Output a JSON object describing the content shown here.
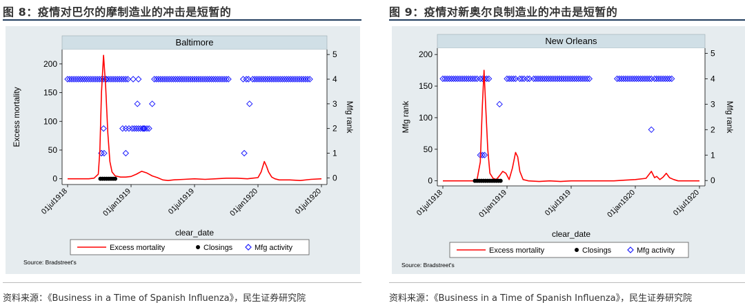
{
  "colors": {
    "excess_mortality": "#ff0000",
    "closings": "#000000",
    "mfg_activity": "#1a1aff",
    "panel_bg": "#e6ecef",
    "plot_bg": "#ffffff",
    "title_strip_bg": "#d0dfe6"
  },
  "figures": [
    {
      "fig_title": "图 8：疫情对巴尔的摩制造业的冲击是短暂的",
      "source_text": "资料来源：《Business in a Time of Spanish Influenza》，民生证券研究院",
      "chart_data": {
        "type": "line",
        "title": "Baltimore",
        "xlabel": "clear_date",
        "ylabel": "Excess mortality",
        "y2label": "Mfg rank",
        "x_tick_labels": [
          "01jul1918",
          "01jan1919",
          "01jul1919",
          "01jan1920",
          "01jul1920"
        ],
        "x_ticks_month": [
          0,
          6,
          12,
          18,
          24
        ],
        "x_range_month": [
          0,
          24
        ],
        "y_ticks": [
          "0",
          "50",
          "100",
          "150",
          "200"
        ],
        "y_range": [
          -10,
          225
        ],
        "y2_ticks": [
          "0",
          "1",
          "2",
          "3",
          "4",
          "5"
        ],
        "y2_range": [
          -0.27,
          5.2
        ],
        "legend": [
          "Excess mortality",
          "Closings",
          "Mfg activity"
        ],
        "legend_position": "bottom",
        "note": "Source: Bradstreet's",
        "excess_mortality": {
          "x": [
            0,
            1,
            2,
            2.5,
            2.9,
            3.05,
            3.2,
            3.4,
            3.6,
            3.8,
            4.0,
            4.2,
            4.5,
            5.0,
            5.5,
            6.0,
            6.5,
            7.0,
            7.5,
            8.0,
            8.5,
            9.0,
            9.5,
            10,
            11,
            12,
            13,
            14,
            15,
            16,
            17,
            17.5,
            18.0,
            18.3,
            18.6,
            18.8,
            19.0,
            19.3,
            19.6,
            20,
            21,
            22,
            23,
            24
          ],
          "y": [
            0,
            0,
            0,
            1,
            8,
            50,
            150,
            215,
            160,
            80,
            30,
            12,
            5,
            3,
            3,
            4,
            8,
            13,
            10,
            5,
            2,
            -2,
            -3,
            -2,
            -1,
            0,
            -1,
            0,
            1,
            1,
            0,
            1,
            2,
            12,
            30,
            22,
            12,
            3,
            0,
            -2,
            -2,
            -3,
            -1,
            0
          ]
        },
        "closings": {
          "x": [
            3.1,
            3.3,
            3.5,
            3.7,
            3.9,
            4.1,
            4.3,
            4.5
          ],
          "y": [
            0,
            0,
            0,
            0,
            0,
            0,
            0,
            0
          ]
        },
        "mfg_activity": {
          "x": [
            0.0,
            0.2,
            0.4,
            0.6,
            0.8,
            1.0,
            1.2,
            1.4,
            1.6,
            1.8,
            2.0,
            2.2,
            2.4,
            2.6,
            2.8,
            3.0,
            3.2,
            3.4,
            3.6,
            3.7,
            3.9,
            4.1,
            4.3,
            4.5,
            4.7,
            4.9,
            5.1,
            5.3,
            5.5,
            5.7,
            6.2,
            6.7,
            3.2,
            3.45,
            3.2,
            3.4,
            5.2,
            5.5,
            5.8,
            6.1,
            6.3,
            6.5,
            6.7,
            6.9,
            7.1,
            7.3,
            7.5,
            7.7,
            5.5,
            6.6,
            7.2,
            8.2,
            8.4,
            8.6,
            8.8,
            9.0,
            9.2,
            9.4,
            9.6,
            9.8,
            10.0,
            10.2,
            10.4,
            10.6,
            10.8,
            11.0,
            11.2,
            11.4,
            11.6,
            11.8,
            12.0,
            12.2,
            12.4,
            12.6,
            12.8,
            13.0,
            13.2,
            13.4,
            13.6,
            13.8,
            14.0,
            14.2,
            14.4,
            14.6,
            14.8,
            15.0,
            15.2,
            8.0,
            16.6,
            16.9,
            17.1,
            17.5,
            17.7,
            17.9,
            18.1,
            18.3,
            18.5,
            18.7,
            18.9,
            19.1,
            19.3,
            19.5,
            19.7,
            19.9,
            20.1,
            20.3,
            20.5,
            20.7,
            20.9,
            21.1,
            21.3,
            21.5,
            21.7,
            21.9,
            22.1,
            22.3,
            22.5,
            22.7,
            22.9,
            17.2,
            16.7
          ],
          "y": [
            4,
            4,
            4,
            4,
            4,
            4,
            4,
            4,
            4,
            4,
            4,
            4,
            4,
            4,
            4,
            4,
            4,
            4,
            4,
            4,
            4,
            4,
            4,
            4,
            4,
            4,
            4,
            4,
            4,
            4,
            4,
            4,
            1,
            1,
            1,
            2,
            2,
            2,
            2,
            2,
            2,
            2,
            2,
            2,
            2,
            2,
            2,
            2,
            1,
            3,
            2,
            4,
            4,
            4,
            4,
            4,
            4,
            4,
            4,
            4,
            4,
            4,
            4,
            4,
            4,
            4,
            4,
            4,
            4,
            4,
            4,
            4,
            4,
            4,
            4,
            4,
            4,
            4,
            4,
            4,
            4,
            4,
            4,
            4,
            4,
            4,
            4,
            3,
            4,
            4,
            4,
            4,
            4,
            4,
            4,
            4,
            4,
            4,
            4,
            4,
            4,
            4,
            4,
            4,
            4,
            4,
            4,
            4,
            4,
            4,
            4,
            4,
            4,
            4,
            4,
            4,
            4,
            4,
            4,
            3,
            1
          ]
        }
      }
    },
    {
      "fig_title": "图 9：疫情对新奥尔良制造业的冲击是短暂的",
      "source_text": "资料来源：《Business in a Time of Spanish Influenza》，民生证券研究院",
      "chart_data": {
        "type": "line",
        "title": "New Orleans",
        "xlabel": "clear_date",
        "ylabel": "Mfg rank",
        "y2label": "Mfg rank",
        "x_tick_labels": [
          "01jul1918",
          "01jan1919",
          "01jul1919",
          "01jan1920",
          "01jul1920"
        ],
        "x_ticks_month": [
          0,
          6,
          12,
          18,
          24
        ],
        "x_range_month": [
          0,
          24
        ],
        "y_ticks": [
          "0",
          "50",
          "100",
          "150",
          "200"
        ],
        "y_range": [
          -8,
          210
        ],
        "y2_ticks": [
          "0",
          "1",
          "2",
          "3",
          "4",
          "5"
        ],
        "y2_range": [
          -0.21,
          5.2
        ],
        "legend": [
          "Excess mortality",
          "Closings",
          "Mfg activity"
        ],
        "legend_position": "bottom",
        "note": "Source: Bradstreet's",
        "excess_mortality": {
          "x": [
            0,
            1,
            2,
            3,
            3.2,
            3.5,
            3.7,
            3.85,
            4.0,
            4.2,
            4.4,
            4.7,
            5.0,
            5.3,
            5.6,
            5.9,
            6.2,
            6.5,
            6.8,
            7.0,
            7.2,
            7.5,
            8.0,
            9,
            10,
            11,
            12,
            13,
            14,
            15,
            16,
            17,
            18,
            19,
            19.5,
            19.8,
            20.0,
            20.3,
            20.6,
            20.9,
            21.2,
            21.6,
            22,
            23,
            24
          ],
          "y": [
            0,
            0,
            0,
            0,
            2,
            30,
            120,
            175,
            120,
            50,
            12,
            4,
            2,
            8,
            15,
            12,
            2,
            20,
            45,
            38,
            15,
            2,
            0,
            -1,
            0,
            -1,
            0,
            0,
            0,
            0,
            0,
            1,
            2,
            4,
            15,
            5,
            7,
            2,
            6,
            12,
            5,
            2,
            0,
            0,
            0
          ]
        },
        "closings": {
          "x": [
            3.0,
            3.2,
            3.4,
            3.6,
            3.8,
            4.0,
            4.2,
            4.4,
            4.6,
            4.8,
            5.0,
            5.2,
            5.4
          ],
          "y": [
            0,
            0,
            0,
            0,
            0,
            0,
            0,
            0,
            0,
            0,
            0,
            0,
            0
          ]
        },
        "mfg_activity": {
          "x": [
            0.0,
            0.2,
            0.4,
            0.6,
            0.8,
            1.0,
            1.2,
            1.4,
            1.6,
            1.8,
            2.0,
            2.2,
            2.4,
            2.6,
            2.8,
            3.0,
            3.2,
            3.5,
            3.7,
            3.9,
            4.1,
            4.3,
            3.5,
            3.7,
            3.9,
            5.3,
            6.0,
            6.2,
            6.4,
            6.6,
            6.8,
            7.2,
            7.4,
            7.6,
            7.9,
            8.1,
            8.5,
            8.7,
            8.9,
            9.1,
            9.3,
            9.5,
            9.7,
            9.9,
            10.1,
            10.3,
            10.5,
            10.7,
            10.9,
            11.1,
            11.3,
            11.5,
            11.7,
            11.9,
            12.1,
            12.3,
            12.5,
            12.7,
            12.9,
            13.1,
            13.3,
            13.5,
            13.7,
            16.3,
            16.5,
            16.7,
            16.9,
            17.1,
            17.3,
            17.5,
            17.7,
            17.9,
            18.1,
            18.3,
            18.5,
            18.7,
            18.9,
            19.1,
            19.3,
            19.5,
            19.8,
            20.0,
            20.2,
            20.4,
            20.6,
            20.8,
            21.0,
            21.2,
            21.4,
            19.5
          ],
          "y": [
            4,
            4,
            4,
            4,
            4,
            4,
            4,
            4,
            4,
            4,
            4,
            4,
            4,
            4,
            4,
            4,
            4,
            4,
            4,
            4,
            4,
            4,
            1,
            1,
            1,
            3,
            4,
            4,
            4,
            4,
            4,
            4,
            4,
            4,
            4,
            4,
            4,
            4,
            4,
            4,
            4,
            4,
            4,
            4,
            4,
            4,
            4,
            4,
            4,
            4,
            4,
            4,
            4,
            4,
            4,
            4,
            4,
            4,
            4,
            4,
            4,
            4,
            4,
            4,
            4,
            4,
            4,
            4,
            4,
            4,
            4,
            4,
            4,
            4,
            4,
            4,
            4,
            4,
            4,
            4,
            4,
            4,
            4,
            4,
            4,
            4,
            4,
            4,
            4,
            2
          ]
        }
      }
    }
  ]
}
